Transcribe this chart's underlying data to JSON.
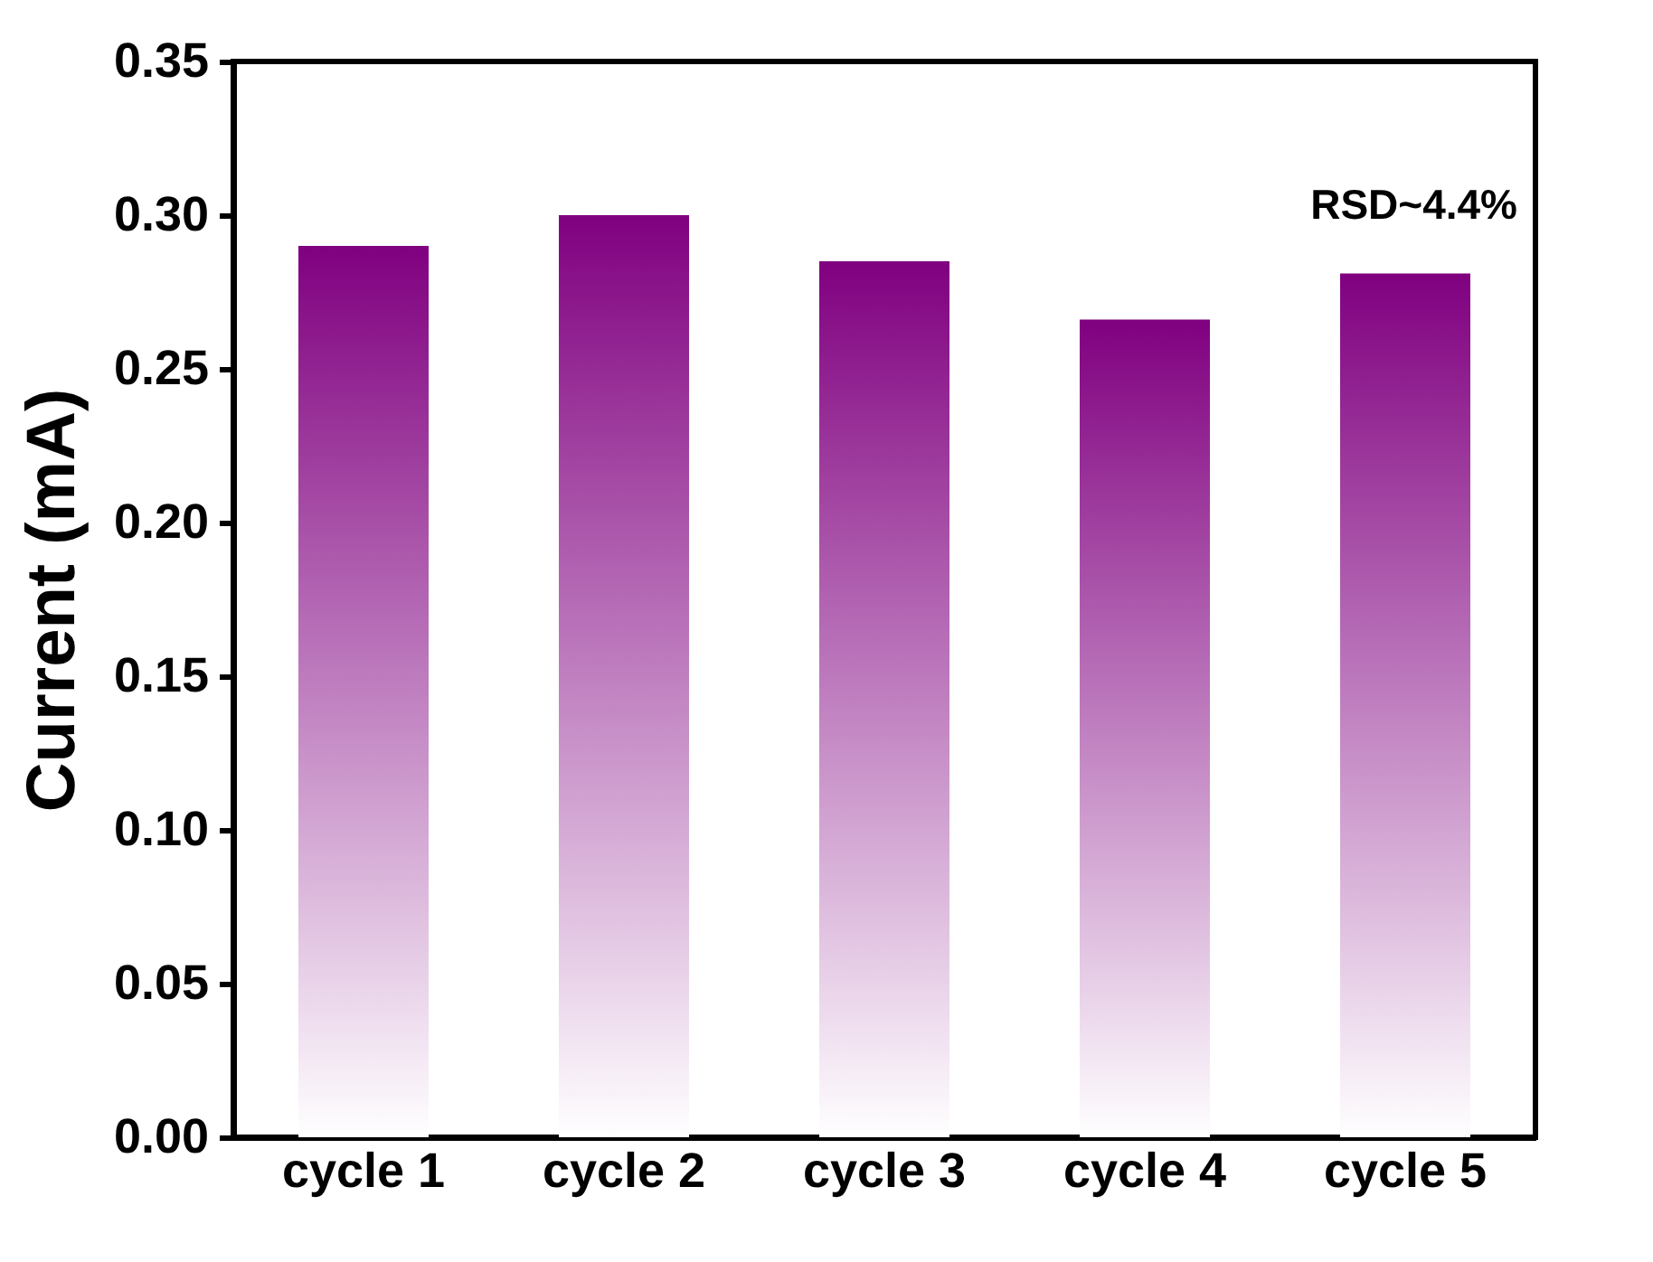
{
  "chart_data": {
    "type": "bar",
    "ylabel": "Current (mA)",
    "categories": [
      "cycle 1",
      "cycle 2",
      "cycle 3",
      "cycle 4",
      "cycle 5"
    ],
    "series": [
      {
        "color": "#800080",
        "values": [
          0.29,
          0.3,
          0.285,
          0.266,
          0.281
        ]
      }
    ],
    "ylim": [
      0,
      0.35
    ],
    "yticks": [
      {
        "value": 0,
        "label": "0.00"
      },
      0.05,
      {
        "value": 0.1,
        "label": "0.10"
      },
      0.15,
      {
        "value": 0.2,
        "label": "0.20"
      },
      0.25,
      {
        "value": 0.3,
        "label": "0.30"
      },
      0.35
    ],
    "grid": false,
    "annotations": [
      "RSD~4.4%"
    ]
  }
}
